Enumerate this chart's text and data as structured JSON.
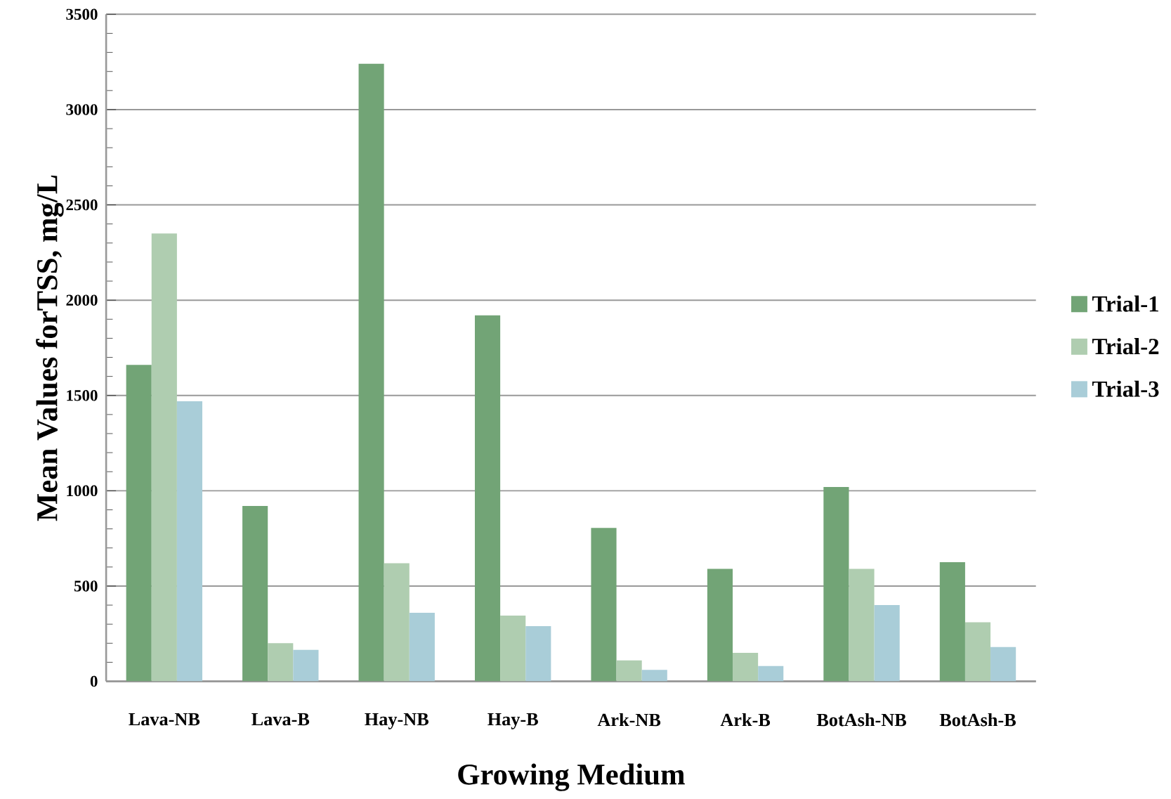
{
  "chart_data": {
    "type": "bar",
    "xlabel": "Growing Medium",
    "ylabel": "Mean Values forTSS, mg/L",
    "categories": [
      "Lava-NB",
      "Lava-B",
      "Hay-NB",
      "Hay-B",
      "Ark-NB",
      "Ark-B",
      "BotAsh-NB",
      "BotAsh-B"
    ],
    "series": [
      {
        "name": "Trial-1",
        "color": "#72a476",
        "values": [
          1660,
          920,
          3240,
          1920,
          805,
          590,
          1020,
          625
        ]
      },
      {
        "name": "Trial-2",
        "color": "#afcdb0",
        "values": [
          2350,
          200,
          620,
          345,
          110,
          150,
          590,
          310
        ]
      },
      {
        "name": "Trial-3",
        "color": "#a9cdd8",
        "values": [
          1470,
          165,
          360,
          290,
          60,
          80,
          400,
          180
        ]
      }
    ],
    "ylim": [
      0,
      3500
    ],
    "yticks": [
      0,
      500,
      1000,
      1500,
      2000,
      2500,
      3000,
      3500
    ],
    "grid": "y",
    "legend": "right"
  }
}
